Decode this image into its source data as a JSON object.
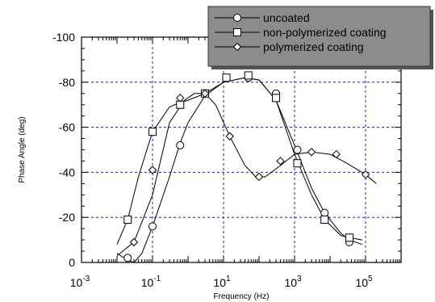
{
  "chart_data": {
    "type": "line",
    "xlabel": "Frequency (Hz)",
    "ylabel": "Phase Angle (deg)",
    "x_scale": "log",
    "xlim": [
      0.001,
      1000000
    ],
    "ylim": [
      0,
      -100
    ],
    "grid": true,
    "legend_position": "top-right",
    "x_ticks": [
      {
        "value": 0.001,
        "base": "10",
        "exp": "-3"
      },
      {
        "value": 0.1,
        "base": "10",
        "exp": "-1"
      },
      {
        "value": 10,
        "base": "10",
        "exp": "1"
      },
      {
        "value": 1000,
        "base": "10",
        "exp": "3"
      },
      {
        "value": 100000,
        "base": "10",
        "exp": "5"
      }
    ],
    "y_ticks": [
      {
        "value": 0,
        "label": "0"
      },
      {
        "value": -20,
        "label": "-20"
      },
      {
        "value": -40,
        "label": "-40"
      },
      {
        "value": -60,
        "label": "-60"
      },
      {
        "value": -80,
        "label": "-80"
      },
      {
        "value": -100,
        "label": "-100"
      }
    ],
    "series": [
      {
        "name": "uncoated",
        "marker": "circle",
        "curve": [
          [
            0.01,
            -4
          ],
          [
            0.02,
            -1
          ],
          [
            0.03,
            0
          ],
          [
            0.05,
            -4
          ],
          [
            0.1,
            -16
          ],
          [
            0.3,
            -38
          ],
          [
            0.6,
            -53
          ],
          [
            1,
            -62
          ],
          [
            3,
            -74
          ],
          [
            10,
            -80
          ],
          [
            40,
            -82
          ],
          [
            100,
            -81
          ],
          [
            300,
            -72
          ],
          [
            1000,
            -52
          ],
          [
            3000,
            -33
          ],
          [
            7000,
            -22
          ],
          [
            20000,
            -13
          ],
          [
            35000,
            -10
          ],
          [
            80000,
            -8
          ]
        ],
        "points": [
          [
            0.02,
            -2
          ],
          [
            0.1,
            -16
          ],
          [
            0.6,
            -52
          ],
          [
            3,
            -75
          ],
          [
            50,
            -82
          ],
          [
            300,
            -75
          ],
          [
            1200,
            -50
          ],
          [
            7000,
            -22
          ],
          [
            35000,
            -9
          ]
        ]
      },
      {
        "name": "non-polymerized coating",
        "marker": "square",
        "curve": [
          [
            0.01,
            -8
          ],
          [
            0.02,
            -19
          ],
          [
            0.04,
            -38
          ],
          [
            0.1,
            -58
          ],
          [
            0.3,
            -69
          ],
          [
            0.6,
            -71
          ],
          [
            1,
            -72
          ],
          [
            3,
            -75
          ],
          [
            10,
            -80
          ],
          [
            40,
            -82
          ],
          [
            100,
            -81
          ],
          [
            300,
            -72
          ],
          [
            1000,
            -48
          ],
          [
            3000,
            -30
          ],
          [
            7000,
            -19
          ],
          [
            20000,
            -12
          ],
          [
            35000,
            -11
          ],
          [
            80000,
            -10
          ]
        ],
        "points": [
          [
            0.02,
            -19
          ],
          [
            0.1,
            -58
          ],
          [
            0.6,
            -70
          ],
          [
            3,
            -75
          ],
          [
            12,
            -82
          ],
          [
            50,
            -83
          ],
          [
            300,
            -73
          ],
          [
            1200,
            -44
          ],
          [
            7000,
            -19
          ],
          [
            35000,
            -11
          ]
        ]
      },
      {
        "name": "polymerized coating",
        "marker": "diamond",
        "curve": [
          [
            0.01,
            -3
          ],
          [
            0.03,
            -9
          ],
          [
            0.1,
            -30
          ],
          [
            0.3,
            -62
          ],
          [
            0.8,
            -72
          ],
          [
            1.5,
            -75
          ],
          [
            3,
            -75
          ],
          [
            6,
            -70
          ],
          [
            15,
            -56
          ],
          [
            40,
            -43
          ],
          [
            80,
            -38
          ],
          [
            150,
            -38
          ],
          [
            400,
            -43
          ],
          [
            1000,
            -48
          ],
          [
            3000,
            -49
          ],
          [
            10000,
            -48
          ],
          [
            30000,
            -44
          ],
          [
            100000,
            -39
          ],
          [
            200000,
            -35
          ]
        ],
        "points": [
          [
            0.03,
            -9
          ],
          [
            0.1,
            -41
          ],
          [
            0.6,
            -73
          ],
          [
            3,
            -75
          ],
          [
            15,
            -56
          ],
          [
            100,
            -38
          ],
          [
            400,
            -45
          ],
          [
            3000,
            -49
          ],
          [
            15000,
            -48
          ],
          [
            100000,
            -39
          ]
        ]
      }
    ]
  }
}
